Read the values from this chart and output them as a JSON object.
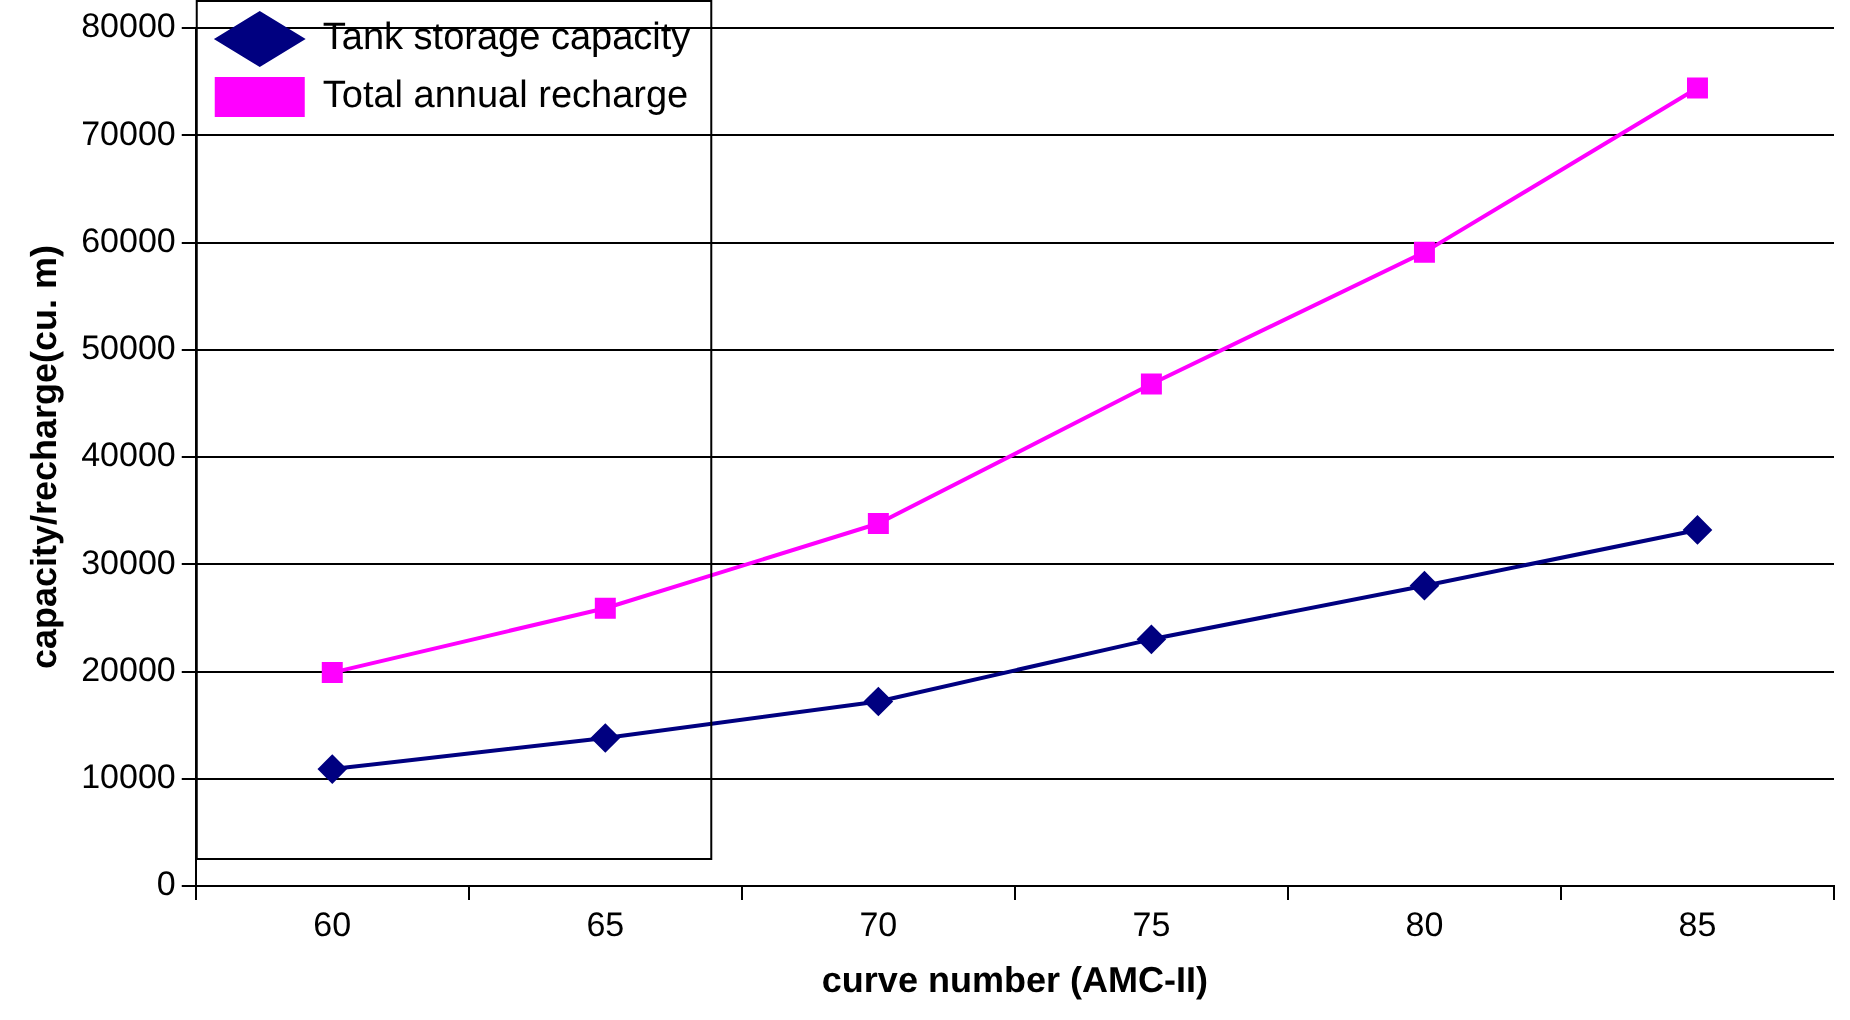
{
  "chart_data": {
    "type": "line",
    "xlabel": "curve number (AMC-II)",
    "ylabel": "capacity/recharge(cu. m)",
    "categories": [
      "60",
      "65",
      "70",
      "75",
      "80",
      "85"
    ],
    "series": [
      {
        "name": "Tank storage capacity",
        "color": "#000080",
        "marker": "diamond",
        "values": [
          10900,
          13800,
          17200,
          23000,
          28000,
          33200
        ]
      },
      {
        "name": "Total annual recharge",
        "color": "#ff00ff",
        "marker": "square",
        "values": [
          19900,
          25900,
          33800,
          46800,
          59100,
          74400
        ]
      }
    ],
    "ylim": [
      0,
      80000
    ],
    "yticks": [
      0,
      10000,
      20000,
      30000,
      40000,
      50000,
      60000,
      70000,
      80000
    ],
    "grid": "y",
    "legend": "top left",
    "line_style": "solid"
  }
}
